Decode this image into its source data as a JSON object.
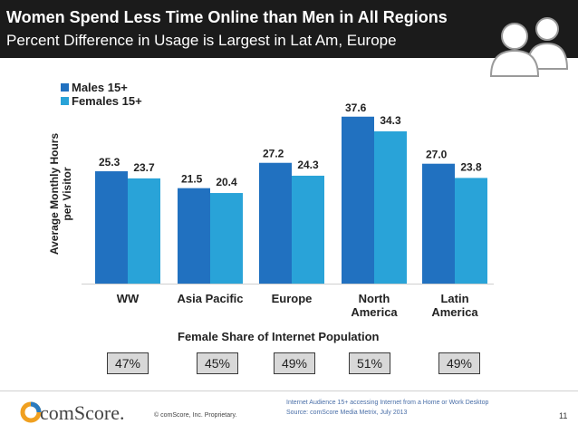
{
  "header": {
    "title": "Women Spend Less Time Online than Men in All Regions",
    "subtitle": "Percent Difference in Usage is Largest in Lat Am, Europe"
  },
  "colors": {
    "males": "#2171c0",
    "females": "#29a3d8",
    "header_bg": "#1b1b1b"
  },
  "chart_data": {
    "type": "bar",
    "categories": [
      "WW",
      "Asia Pacific",
      "Europe",
      "North America",
      "Latin America"
    ],
    "category_lines": [
      [
        "WW"
      ],
      [
        "Asia Pacific"
      ],
      [
        "Europe"
      ],
      [
        "North",
        "America"
      ],
      [
        "Latin",
        "America"
      ]
    ],
    "series": [
      {
        "name": "Males 15+",
        "values": [
          25.3,
          21.5,
          27.2,
          37.6,
          27.0
        ],
        "labels": [
          "25.3",
          "21.5",
          "27.2",
          "37.6",
          "27.0"
        ]
      },
      {
        "name": "Females 15+",
        "values": [
          23.7,
          20.4,
          24.3,
          34.3,
          23.8
        ],
        "labels": [
          "23.7",
          "20.4",
          "24.3",
          "34.3",
          "23.8"
        ]
      }
    ],
    "ylabel_lines": [
      "Average Monthly Hours",
      "per Visitor"
    ],
    "ylabel": "Average Monthly Hours per Visitor",
    "ylim": [
      0,
      40
    ],
    "grid": false,
    "legend": "top-left"
  },
  "female_share": {
    "title": "Female Share of Internet Population",
    "values": [
      "47%",
      "45%",
      "49%",
      "51%",
      "49%"
    ]
  },
  "footer": {
    "logo": "comScore.",
    "copyright": "© comScore, Inc.    Proprietary.",
    "note1": "Internet Audience 15+ accessing Internet from a Home or Work Desktop",
    "note2": "Source:  comScore Media Metrix, July 2013",
    "page": "11"
  }
}
